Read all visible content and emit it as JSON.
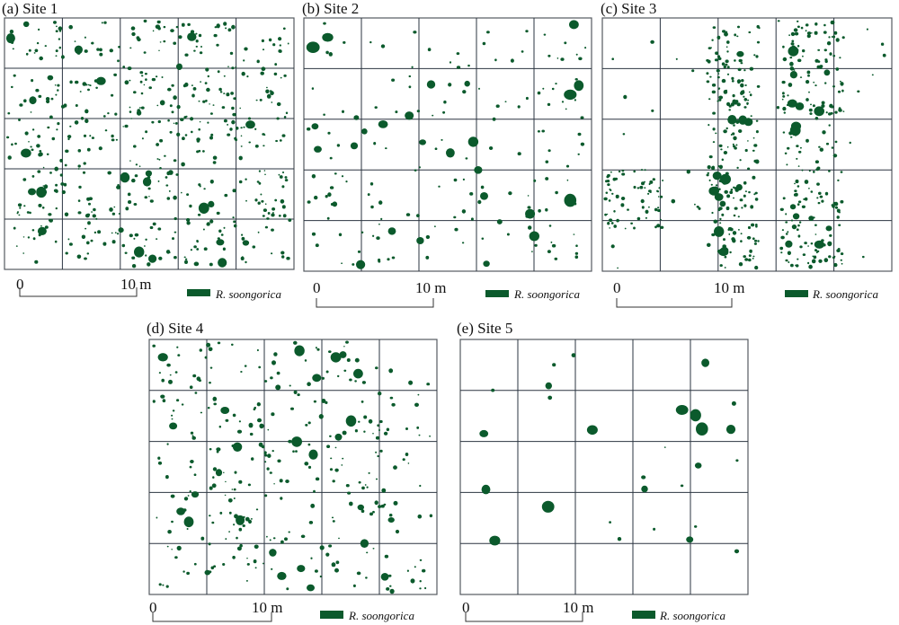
{
  "panels": [
    {
      "id": "a",
      "title": "(a) Site 1",
      "scale_start": "0",
      "scale_end": "10 m",
      "legend": "R. soongorica",
      "density": "high",
      "pattern": "uniform"
    },
    {
      "id": "b",
      "title": "(b) Site 2",
      "scale_start": "0",
      "scale_end": "10 m",
      "legend": "R. soongorica",
      "density": "low",
      "pattern": "scattered"
    },
    {
      "id": "c",
      "title": "(c) Site 3",
      "scale_start": "0",
      "scale_end": "10 m",
      "legend": "R. soongorica",
      "density": "high",
      "pattern": "banded"
    },
    {
      "id": "d",
      "title": "(d) Site 4",
      "scale_start": "0",
      "scale_end": "10 m",
      "legend": "R. soongorica",
      "density": "medium",
      "pattern": "uniform"
    },
    {
      "id": "e",
      "title": "(e) Site 5",
      "scale_start": "0",
      "scale_end": "10 m",
      "legend": "R. soongorica",
      "density": "very-low",
      "pattern": "sparse"
    }
  ],
  "colors": {
    "shrub": "#0b5a2c",
    "grid": "#2b3440"
  }
}
